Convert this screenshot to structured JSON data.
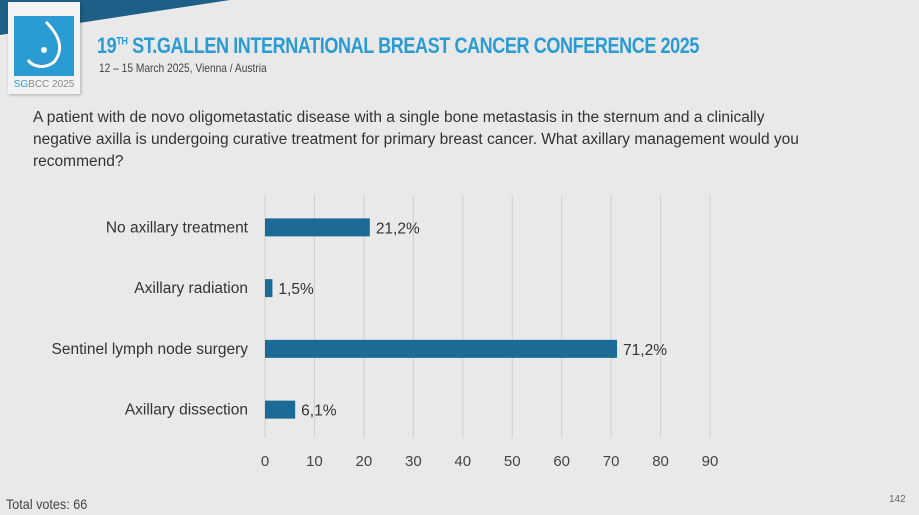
{
  "header": {
    "title_main": "19",
    "title_sup": "TH",
    "title_rest": " ST.GALLEN INTERNATIONAL BREAST CANCER CONFERENCE 2025",
    "subtitle": "12 – 15 March 2025, Vienna / Austria",
    "logo_text_a": "SG",
    "logo_text_b": "BCC 2025"
  },
  "question": "A patient with de novo oligometastatic disease with a single bone metastasis in the sternum and a clinically negative axilla is undergoing curative treatment for primary breast cancer. What axillary management would you recommend?",
  "footer": {
    "total_votes": "Total votes: 66",
    "page_number": "142"
  },
  "colors": {
    "bar": "#1c6b96",
    "accent": "#2b9bd3"
  },
  "chart_data": {
    "type": "bar",
    "orientation": "horizontal",
    "categories": [
      "No axillary treatment",
      "Axillary radiation",
      "Sentinel lymph node surgery",
      "Axillary dissection"
    ],
    "values": [
      21.2,
      1.5,
      71.2,
      6.1
    ],
    "data_labels": [
      "21,2%",
      "1,5%",
      "71,2%",
      "6,1%"
    ],
    "xlim": [
      0,
      90
    ],
    "xticks": [
      "0",
      "10",
      "20",
      "30",
      "40",
      "50",
      "60",
      "70",
      "80",
      "90"
    ],
    "grid": true
  }
}
